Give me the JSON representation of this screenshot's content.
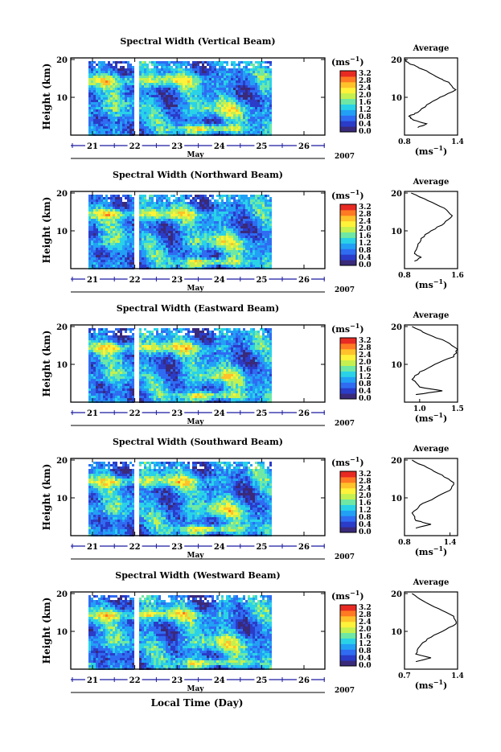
{
  "chart_data": {
    "type": "heatmap",
    "colorbar": {
      "unit_base": "(ms",
      "unit_exp": "−1",
      "unit_close": ")",
      "ticks": [
        "0.0",
        "0.4",
        "0.8",
        "1.2",
        "1.6",
        "2.0",
        "2.4",
        "2.8",
        "3.2"
      ],
      "colors": [
        "#3a2a7a",
        "#2a3cc8",
        "#2f6cf2",
        "#22a0f5",
        "#2ad2e8",
        "#6ee8a4",
        "#c4f050",
        "#fff23a",
        "#ffc22a",
        "#ff7a22",
        "#e82a22"
      ]
    },
    "x_ticks": [
      "21",
      "22",
      "23",
      "24",
      "25",
      "26"
    ],
    "x_month": "May",
    "x_year": "2007",
    "x_label": "Local Time (Day)",
    "y_label": "Height (km)",
    "y_ticks": [
      "10",
      "20"
    ],
    "avg_title": "Average",
    "avg_xlabel_base": "(ms",
    "avg_xlabel_exp": "−1",
    "avg_xlabel_close": ")",
    "panels": [
      {
        "title": "Spectral Width (Vertical Beam)",
        "avg_xticks": [
          "0.8",
          "1.4"
        ],
        "avg_xlim": [
          0.8,
          1.4
        ],
        "avg_profile": [
          [
            0.95,
            2
          ],
          [
            1.05,
            3
          ],
          [
            0.9,
            4
          ],
          [
            0.85,
            5
          ],
          [
            0.95,
            6
          ],
          [
            1.05,
            8
          ],
          [
            1.2,
            10
          ],
          [
            1.38,
            12
          ],
          [
            1.3,
            14
          ],
          [
            1.2,
            15
          ],
          [
            1.05,
            17
          ],
          [
            0.95,
            18
          ],
          [
            0.85,
            19
          ],
          [
            0.8,
            20
          ]
        ]
      },
      {
        "title": "Spectral Width (Northward Beam)",
        "avg_xticks": [
          "0.8",
          "1.6"
        ],
        "avg_xlim": [
          0.8,
          1.6
        ],
        "avg_profile": [
          [
            0.95,
            2
          ],
          [
            1.05,
            3
          ],
          [
            0.95,
            4
          ],
          [
            1.0,
            6
          ],
          [
            1.05,
            8
          ],
          [
            1.2,
            10
          ],
          [
            1.4,
            12
          ],
          [
            1.52,
            14
          ],
          [
            1.4,
            16
          ],
          [
            1.15,
            18
          ],
          [
            0.9,
            20
          ]
        ]
      },
      {
        "title": "Spectral Width (Eastward Beam)",
        "avg_xticks": [
          "1.0",
          "1.5"
        ],
        "avg_xlim": [
          0.8,
          1.5
        ],
        "avg_profile": [
          [
            0.95,
            2
          ],
          [
            1.3,
            3
          ],
          [
            1.0,
            4
          ],
          [
            0.9,
            6
          ],
          [
            1.0,
            8
          ],
          [
            1.2,
            10
          ],
          [
            1.45,
            12
          ],
          [
            1.5,
            14
          ],
          [
            1.35,
            16
          ],
          [
            1.1,
            18
          ],
          [
            0.9,
            20
          ]
        ]
      },
      {
        "title": "Spectral Width (Southward Beam)",
        "avg_xticks": [
          "0.8",
          "1.4"
        ],
        "avg_xlim": [
          0.8,
          1.5
        ],
        "avg_profile": [
          [
            0.95,
            2
          ],
          [
            1.15,
            3
          ],
          [
            0.95,
            4
          ],
          [
            0.9,
            6
          ],
          [
            1.0,
            8
          ],
          [
            1.2,
            10
          ],
          [
            1.4,
            12
          ],
          [
            1.45,
            14
          ],
          [
            1.3,
            16
          ],
          [
            1.1,
            18
          ],
          [
            0.9,
            20
          ]
        ]
      },
      {
        "title": "Spectral Width (Westward Beam)",
        "avg_xticks": [
          "0.7",
          "1.4"
        ],
        "avg_xlim": [
          0.7,
          1.4
        ],
        "avg_profile": [
          [
            0.85,
            2
          ],
          [
            1.05,
            3
          ],
          [
            0.85,
            4
          ],
          [
            0.9,
            6
          ],
          [
            1.0,
            8
          ],
          [
            1.2,
            10
          ],
          [
            1.38,
            12
          ],
          [
            1.35,
            14
          ],
          [
            1.15,
            16
          ],
          [
            0.95,
            18
          ],
          [
            0.8,
            20
          ]
        ]
      }
    ]
  }
}
